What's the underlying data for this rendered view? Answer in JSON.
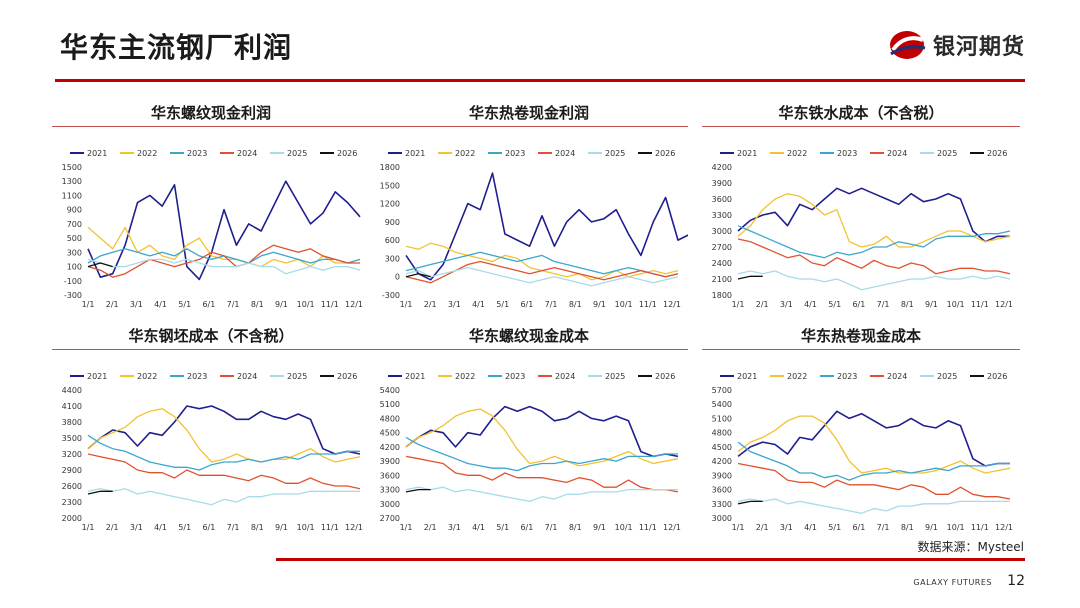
{
  "page": {
    "title": "华东主流钢厂利润",
    "brand_name": "银河期货",
    "source_label": "数据来源：Mysteel",
    "footer_brand": "GALAXY FUTURES",
    "page_number": "12"
  },
  "colors": {
    "accent_red": "#c00000",
    "2021": "#1f1f8f",
    "2022": "#f2c230",
    "2023": "#3aa6d0",
    "2024": "#e0522d",
    "2025": "#a8dbe8",
    "2026": "#111111"
  },
  "chart_data": [
    {
      "type": "line",
      "title": "华东螺纹现金利润",
      "x_ticks": [
        "1/1",
        "2/1",
        "3/1",
        "4/1",
        "5/1",
        "6/1",
        "7/1",
        "8/1",
        "9/1",
        "10/1",
        "11/1",
        "12/1"
      ],
      "y_ticks": [
        1500,
        1300,
        1100,
        900,
        700,
        500,
        300,
        100,
        -100,
        -300
      ],
      "ylim": [
        -300,
        1500
      ],
      "series": [
        {
          "name": "2021",
          "values": [
            350,
            -50,
            0,
            400,
            1000,
            1100,
            950,
            1250,
            100,
            -80,
            300,
            900,
            400,
            700,
            600,
            950,
            1300,
            1000,
            700,
            850,
            1150,
            1000,
            800
          ]
        },
        {
          "name": "2022",
          "values": [
            650,
            500,
            350,
            650,
            300,
            400,
            250,
            200,
            400,
            500,
            250,
            200,
            200,
            150,
            100,
            200,
            150,
            200,
            100,
            250,
            150,
            150,
            200
          ]
        },
        {
          "name": "2023",
          "values": [
            150,
            250,
            300,
            350,
            300,
            250,
            300,
            250,
            350,
            250,
            200,
            250,
            200,
            150,
            250,
            300,
            250,
            200,
            150,
            200,
            200,
            150,
            200
          ]
        },
        {
          "name": "2024",
          "values": [
            100,
            50,
            -50,
            0,
            100,
            200,
            150,
            100,
            150,
            200,
            300,
            250,
            100,
            150,
            300,
            400,
            350,
            300,
            350,
            250,
            200,
            150,
            150
          ]
        },
        {
          "name": "2025",
          "values": [
            200,
            150,
            100,
            100,
            150,
            200,
            200,
            150,
            200,
            150,
            100,
            100,
            100,
            150,
            100,
            100,
            0,
            50,
            100,
            50,
            100,
            100,
            50
          ]
        },
        {
          "name": "2026",
          "values": [
            100,
            150,
            100
          ]
        }
      ]
    },
    {
      "type": "line",
      "title": "华东热卷现金利润",
      "x_ticks": [
        "1/1",
        "2/1",
        "3/1",
        "4/1",
        "5/1",
        "6/1",
        "7/1",
        "8/1",
        "9/1",
        "10/1",
        "11/1",
        "12/1"
      ],
      "y_ticks": [
        1800,
        1500,
        1200,
        900,
        600,
        300,
        0,
        -300
      ],
      "ylim": [
        -300,
        1800
      ],
      "series": [
        {
          "name": "2021",
          "values": [
            350,
            50,
            -50,
            200,
            700,
            1200,
            1100,
            1700,
            700,
            600,
            500,
            1000,
            500,
            900,
            1100,
            900,
            950,
            1100,
            700,
            350,
            900,
            1300,
            600,
            700
          ]
        },
        {
          "name": "2022",
          "values": [
            500,
            450,
            550,
            500,
            400,
            350,
            300,
            250,
            350,
            300,
            150,
            100,
            50,
            0,
            50,
            -50,
            0,
            100,
            0,
            50,
            100,
            50,
            100
          ]
        },
        {
          "name": "2023",
          "values": [
            100,
            150,
            200,
            250,
            300,
            350,
            400,
            350,
            300,
            250,
            300,
            350,
            250,
            200,
            150,
            100,
            50,
            100,
            150,
            100,
            50,
            0,
            50
          ]
        },
        {
          "name": "2024",
          "values": [
            0,
            -50,
            -100,
            0,
            100,
            200,
            250,
            200,
            150,
            100,
            50,
            100,
            150,
            100,
            50,
            0,
            -50,
            0,
            50,
            100,
            50,
            0,
            50
          ]
        },
        {
          "name": "2025",
          "values": [
            50,
            100,
            0,
            50,
            100,
            150,
            100,
            50,
            0,
            -50,
            -100,
            -50,
            0,
            -50,
            -100,
            -150,
            -100,
            -50,
            0,
            -50,
            -100,
            -50,
            0
          ]
        },
        {
          "name": "2026",
          "values": [
            0,
            50,
            0
          ]
        }
      ]
    },
    {
      "type": "line",
      "title": "华东铁水成本（不含税）",
      "x_ticks": [
        "1/1",
        "2/1",
        "3/1",
        "4/1",
        "5/1",
        "6/1",
        "7/1",
        "8/1",
        "9/1",
        "10/1",
        "11/1",
        "12/1"
      ],
      "y_ticks": [
        4200,
        3900,
        3600,
        3300,
        3000,
        2700,
        2400,
        2100,
        1800
      ],
      "ylim": [
        1800,
        4200
      ],
      "series": [
        {
          "name": "2021",
          "values": [
            3000,
            3200,
            3300,
            3350,
            3100,
            3500,
            3400,
            3600,
            3800,
            3700,
            3800,
            3700,
            3600,
            3500,
            3700,
            3550,
            3600,
            3700,
            3600,
            3000,
            2800,
            2900,
            2900
          ]
        },
        {
          "name": "2022",
          "values": [
            2900,
            3100,
            3400,
            3600,
            3700,
            3650,
            3500,
            3300,
            3400,
            2800,
            2700,
            2750,
            2900,
            2700,
            2700,
            2800,
            2900,
            3000,
            3000,
            2900,
            2800,
            2850,
            2900
          ]
        },
        {
          "name": "2023",
          "values": [
            3100,
            3000,
            2900,
            2800,
            2700,
            2600,
            2550,
            2500,
            2600,
            2550,
            2600,
            2700,
            2700,
            2800,
            2750,
            2700,
            2850,
            2900,
            2900,
            2900,
            2950,
            2950,
            3000
          ]
        },
        {
          "name": "2024",
          "values": [
            2850,
            2800,
            2700,
            2600,
            2500,
            2550,
            2400,
            2350,
            2500,
            2400,
            2300,
            2450,
            2350,
            2300,
            2400,
            2350,
            2200,
            2250,
            2300,
            2300,
            2250,
            2250,
            2200
          ]
        },
        {
          "name": "2025",
          "values": [
            2200,
            2250,
            2200,
            2250,
            2150,
            2100,
            2100,
            2050,
            2100,
            2000,
            1900,
            1950,
            2000,
            2050,
            2100,
            2100,
            2150,
            2100,
            2100,
            2150,
            2100,
            2150,
            2100
          ]
        },
        {
          "name": "2026",
          "values": [
            2100,
            2150,
            2150
          ]
        }
      ]
    },
    {
      "type": "line",
      "title": "华东钢坯成本（不含税）",
      "x_ticks": [
        "1/1",
        "2/1",
        "3/1",
        "4/1",
        "5/1",
        "6/1",
        "7/1",
        "8/1",
        "9/1",
        "10/1",
        "11/1",
        "12/1"
      ],
      "y_ticks": [
        4400,
        4100,
        3800,
        3500,
        3200,
        2900,
        2600,
        2300,
        2000
      ],
      "ylim": [
        2000,
        4400
      ],
      "series": [
        {
          "name": "2021",
          "values": [
            3300,
            3500,
            3650,
            3600,
            3350,
            3600,
            3550,
            3800,
            4100,
            4050,
            4100,
            4000,
            3850,
            3850,
            4000,
            3900,
            3850,
            3950,
            3850,
            3300,
            3200,
            3250,
            3200
          ]
        },
        {
          "name": "2022",
          "values": [
            3300,
            3500,
            3600,
            3700,
            3900,
            4000,
            4050,
            3900,
            3650,
            3300,
            3050,
            3100,
            3200,
            3100,
            3050,
            3100,
            3100,
            3200,
            3300,
            3150,
            3050,
            3100,
            3150
          ]
        },
        {
          "name": "2023",
          "values": [
            3550,
            3400,
            3300,
            3250,
            3150,
            3050,
            3000,
            2950,
            2950,
            2900,
            3000,
            3050,
            3050,
            3100,
            3050,
            3100,
            3150,
            3100,
            3200,
            3200,
            3200,
            3250,
            3250
          ]
        },
        {
          "name": "2024",
          "values": [
            3200,
            3150,
            3100,
            3050,
            2900,
            2850,
            2850,
            2750,
            2900,
            2800,
            2800,
            2800,
            2750,
            2700,
            2800,
            2750,
            2650,
            2650,
            2750,
            2650,
            2600,
            2600,
            2550
          ]
        },
        {
          "name": "2025",
          "values": [
            2500,
            2550,
            2500,
            2550,
            2450,
            2500,
            2450,
            2400,
            2350,
            2300,
            2250,
            2350,
            2300,
            2400,
            2400,
            2450,
            2450,
            2450,
            2500,
            2500,
            2500,
            2500,
            2500
          ]
        },
        {
          "name": "2026",
          "values": [
            2450,
            2500,
            2500
          ]
        }
      ]
    },
    {
      "type": "line",
      "title": "华东螺纹现金成本",
      "x_ticks": [
        "1/1",
        "2/1",
        "3/1",
        "4/1",
        "5/1",
        "6/1",
        "7/1",
        "8/1",
        "9/1",
        "10/1",
        "11/1",
        "12/1"
      ],
      "y_ticks": [
        5400,
        5100,
        4800,
        4500,
        4200,
        3900,
        3600,
        3300,
        3000,
        2700
      ],
      "ylim": [
        2700,
        5400
      ],
      "series": [
        {
          "name": "2021",
          "values": [
            4200,
            4400,
            4550,
            4500,
            4200,
            4500,
            4450,
            4800,
            5050,
            4950,
            5050,
            4950,
            4750,
            4800,
            4950,
            4800,
            4750,
            4850,
            4750,
            4100,
            4000,
            4050,
            4000
          ]
        },
        {
          "name": "2022",
          "values": [
            4200,
            4400,
            4500,
            4650,
            4850,
            4950,
            5000,
            4850,
            4550,
            4150,
            3850,
            3900,
            4000,
            3900,
            3800,
            3850,
            3900,
            4000,
            4100,
            3950,
            3850,
            3900,
            3950
          ]
        },
        {
          "name": "2023",
          "values": [
            4400,
            4250,
            4150,
            4050,
            3950,
            3850,
            3800,
            3750,
            3750,
            3700,
            3800,
            3850,
            3850,
            3900,
            3850,
            3900,
            3950,
            3900,
            4000,
            4000,
            4000,
            4050,
            4050
          ]
        },
        {
          "name": "2024",
          "values": [
            4000,
            3950,
            3900,
            3850,
            3650,
            3600,
            3600,
            3500,
            3650,
            3550,
            3550,
            3550,
            3500,
            3450,
            3550,
            3500,
            3350,
            3350,
            3500,
            3350,
            3300,
            3300,
            3250
          ]
        },
        {
          "name": "2025",
          "values": [
            3300,
            3350,
            3300,
            3350,
            3250,
            3300,
            3250,
            3200,
            3150,
            3100,
            3050,
            3150,
            3100,
            3200,
            3200,
            3250,
            3250,
            3250,
            3300,
            3300,
            3300,
            3300,
            3300
          ]
        },
        {
          "name": "2026",
          "values": [
            3250,
            3300,
            3300
          ]
        }
      ]
    },
    {
      "type": "line",
      "title": "华东热卷现金成本",
      "x_ticks": [
        "1/1",
        "2/1",
        "3/1",
        "4/1",
        "5/1",
        "6/1",
        "7/1",
        "8/1",
        "9/1",
        "10/1",
        "11/1",
        "12/1"
      ],
      "y_ticks": [
        5700,
        5400,
        5100,
        4800,
        4500,
        4200,
        3900,
        3600,
        3300,
        3000
      ],
      "ylim": [
        3000,
        5700
      ],
      "series": [
        {
          "name": "2021",
          "values": [
            4300,
            4500,
            4600,
            4550,
            4350,
            4700,
            4650,
            4950,
            5250,
            5100,
            5200,
            5050,
            4900,
            4950,
            5100,
            4950,
            4900,
            5050,
            4950,
            4250,
            4100,
            4150,
            4150
          ]
        },
        {
          "name": "2022",
          "values": [
            4400,
            4600,
            4700,
            4850,
            5050,
            5150,
            5150,
            5000,
            4650,
            4200,
            3950,
            4000,
            4050,
            3950,
            3950,
            3950,
            4000,
            4100,
            4200,
            4050,
            3950,
            4000,
            4050
          ]
        },
        {
          "name": "2023",
          "values": [
            4600,
            4400,
            4300,
            4200,
            4100,
            3950,
            3950,
            3850,
            3900,
            3800,
            3900,
            3950,
            3950,
            4000,
            3950,
            4000,
            4050,
            4000,
            4100,
            4100,
            4100,
            4150,
            4150
          ]
        },
        {
          "name": "2024",
          "values": [
            4150,
            4100,
            4050,
            4000,
            3800,
            3750,
            3750,
            3650,
            3800,
            3700,
            3700,
            3700,
            3650,
            3600,
            3700,
            3650,
            3500,
            3500,
            3650,
            3500,
            3450,
            3450,
            3400
          ]
        },
        {
          "name": "2025",
          "values": [
            3350,
            3400,
            3350,
            3400,
            3300,
            3350,
            3300,
            3250,
            3200,
            3150,
            3100,
            3200,
            3150,
            3250,
            3250,
            3300,
            3300,
            3300,
            3350,
            3350,
            3350,
            3350,
            3350
          ]
        },
        {
          "name": "2026",
          "values": [
            3300,
            3350,
            3350
          ]
        }
      ]
    }
  ]
}
